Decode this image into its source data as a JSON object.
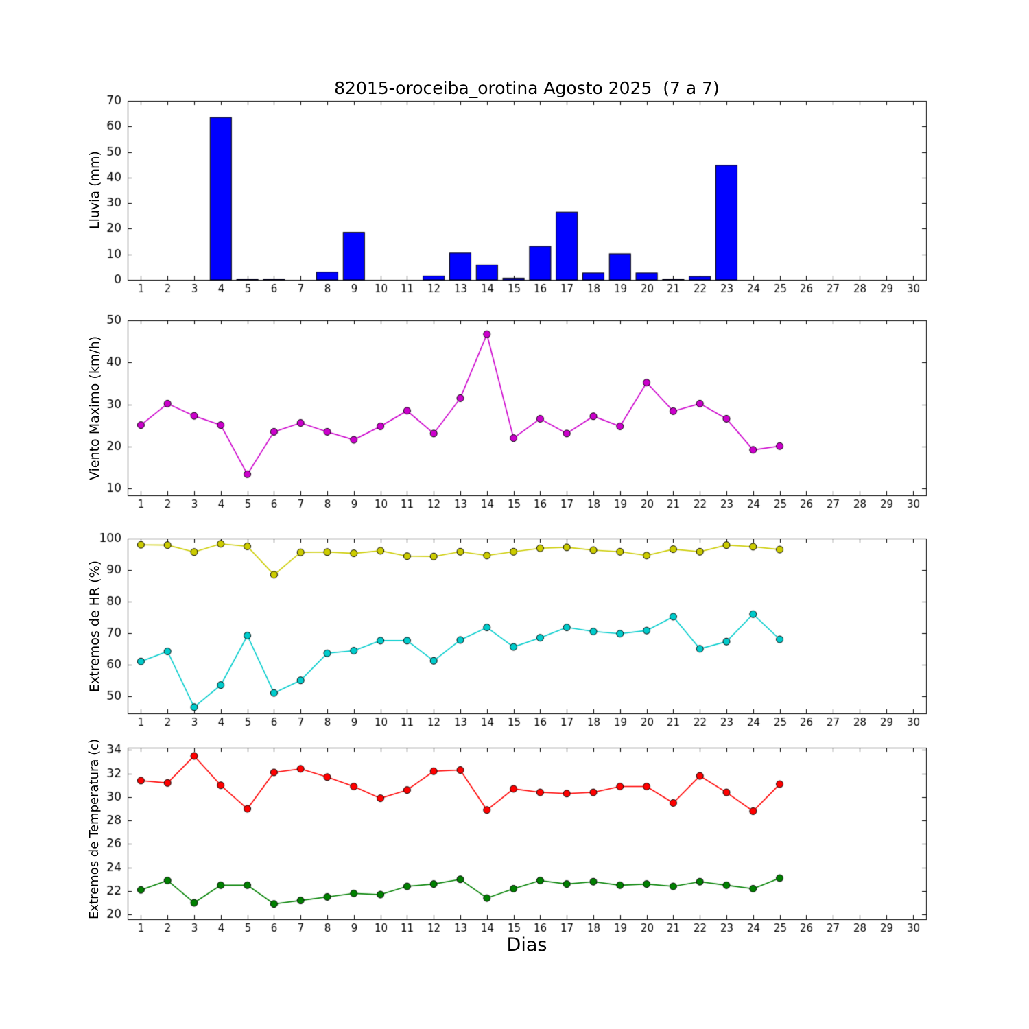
{
  "figure": {
    "title": "82015-oroceiba_orotina Agosto 2025  (7 a 7)",
    "xlabel": "Dias",
    "background": "#ffffff"
  },
  "chart_data": [
    {
      "type": "bar",
      "name": "lluvia",
      "ylabel": "Lluvia (mm)",
      "color": "#0000ff",
      "categories": [
        1,
        2,
        3,
        4,
        5,
        6,
        7,
        8,
        9,
        10,
        11,
        12,
        13,
        14,
        15,
        16,
        17,
        18,
        19,
        20,
        21,
        22,
        23,
        24,
        25,
        26,
        27,
        28,
        29,
        30
      ],
      "values": [
        0,
        0,
        0,
        63.5,
        0.3,
        0.3,
        0,
        3.0,
        18.6,
        0,
        0,
        1.5,
        10.5,
        5.8,
        0.7,
        13.1,
        26.5,
        2.7,
        10.2,
        2.7,
        0.3,
        1.3,
        44.8,
        0,
        0,
        0,
        0,
        0,
        0,
        0
      ],
      "xlim": [
        0.5,
        30.5
      ],
      "ylim": [
        0,
        70
      ],
      "xticks": [
        1,
        2,
        3,
        4,
        5,
        6,
        7,
        8,
        9,
        10,
        11,
        12,
        13,
        14,
        15,
        16,
        17,
        18,
        19,
        20,
        21,
        22,
        23,
        24,
        25,
        26,
        27,
        28,
        29,
        30
      ],
      "yticks": [
        0,
        10,
        20,
        30,
        40,
        50,
        60,
        70
      ],
      "grid": false,
      "legend": "none"
    },
    {
      "type": "line",
      "name": "viento-maximo",
      "ylabel": "Viento Maximo (km/h)",
      "x": [
        1,
        2,
        3,
        4,
        5,
        6,
        7,
        8,
        9,
        10,
        11,
        12,
        13,
        14,
        15,
        16,
        17,
        18,
        19,
        20,
        21,
        22,
        23,
        24,
        25
      ],
      "series": [
        {
          "name": "Viento Maximo",
          "color": "#cc00cc",
          "values": [
            25.1,
            30.2,
            27.3,
            25.1,
            13.4,
            23.5,
            25.6,
            23.5,
            21.6,
            24.8,
            28.5,
            23.1,
            31.5,
            46.7,
            22.0,
            26.6,
            23.1,
            27.2,
            24.8,
            35.2,
            28.4,
            30.2,
            26.6,
            19.2,
            20.1
          ]
        }
      ],
      "xlim": [
        0.5,
        30.5
      ],
      "ylim": [
        8.4,
        50
      ],
      "xticks": [
        1,
        2,
        3,
        4,
        5,
        6,
        7,
        8,
        9,
        10,
        11,
        12,
        13,
        14,
        15,
        16,
        17,
        18,
        19,
        20,
        21,
        22,
        23,
        24,
        25,
        26,
        27,
        28,
        29,
        30
      ],
      "yticks": [
        10,
        20,
        30,
        40,
        50
      ],
      "grid": false,
      "legend": "none"
    },
    {
      "type": "line",
      "name": "extremos-hr",
      "ylabel": "Extremos de HR (%)",
      "x": [
        1,
        2,
        3,
        4,
        5,
        6,
        7,
        8,
        9,
        10,
        11,
        12,
        13,
        14,
        15,
        16,
        17,
        18,
        19,
        20,
        21,
        22,
        23,
        24,
        25
      ],
      "series": [
        {
          "name": "HR maxima",
          "color": "#cccc00",
          "values": [
            98.0,
            97.9,
            95.7,
            98.3,
            97.5,
            88.5,
            95.6,
            95.7,
            95.3,
            96.1,
            94.4,
            94.3,
            95.8,
            94.6,
            95.8,
            96.9,
            97.2,
            96.3,
            95.8,
            94.6,
            96.6,
            95.8,
            97.9,
            97.4,
            96.5
          ]
        },
        {
          "name": "HR minima",
          "color": "#00cccc",
          "values": [
            61.0,
            64.2,
            46.5,
            53.5,
            69.2,
            51.0,
            55.0,
            63.6,
            64.4,
            67.6,
            67.6,
            61.2,
            67.8,
            71.8,
            65.6,
            68.5,
            71.8,
            70.5,
            69.8,
            70.8,
            75.2,
            65.0,
            67.3,
            76.0,
            68.0
          ]
        }
      ],
      "xlim": [
        0.5,
        30.5
      ],
      "ylim": [
        44.5,
        100
      ],
      "xticks": [
        1,
        2,
        3,
        4,
        5,
        6,
        7,
        8,
        9,
        10,
        11,
        12,
        13,
        14,
        15,
        16,
        17,
        18,
        19,
        20,
        21,
        22,
        23,
        24,
        25,
        26,
        27,
        28,
        29,
        30
      ],
      "yticks": [
        50,
        60,
        70,
        80,
        90,
        100
      ],
      "grid": false,
      "legend": "none"
    },
    {
      "type": "line",
      "name": "extremos-temperatura",
      "ylabel": "Extremos de Temperatura (c)",
      "x": [
        1,
        2,
        3,
        4,
        5,
        6,
        7,
        8,
        9,
        10,
        11,
        12,
        13,
        14,
        15,
        16,
        17,
        18,
        19,
        20,
        21,
        22,
        23,
        24,
        25
      ],
      "series": [
        {
          "name": "Temperatura maxima",
          "color": "#ff0000",
          "values": [
            31.4,
            31.2,
            33.5,
            31.0,
            29.0,
            32.1,
            32.4,
            31.7,
            30.9,
            29.9,
            30.6,
            32.2,
            32.3,
            28.9,
            30.7,
            30.4,
            30.3,
            30.4,
            30.9,
            30.9,
            29.5,
            31.8,
            30.4,
            28.8,
            31.1
          ]
        },
        {
          "name": "Temperatura minima",
          "color": "#008000",
          "values": [
            22.1,
            22.9,
            21.0,
            22.5,
            22.5,
            20.9,
            21.2,
            21.5,
            21.8,
            21.7,
            22.4,
            22.6,
            23.0,
            21.4,
            22.2,
            22.9,
            22.6,
            22.8,
            22.5,
            22.6,
            22.4,
            22.8,
            22.5,
            22.2,
            23.1
          ]
        }
      ],
      "xlim": [
        0.5,
        30.5
      ],
      "ylim": [
        19.6,
        34.2
      ],
      "xticks": [
        1,
        2,
        3,
        4,
        5,
        6,
        7,
        8,
        9,
        10,
        11,
        12,
        13,
        14,
        15,
        16,
        17,
        18,
        19,
        20,
        21,
        22,
        23,
        24,
        25,
        26,
        27,
        28,
        29,
        30
      ],
      "yticks": [
        20,
        22,
        24,
        26,
        28,
        30,
        32,
        34
      ],
      "grid": false,
      "legend": "none"
    }
  ]
}
